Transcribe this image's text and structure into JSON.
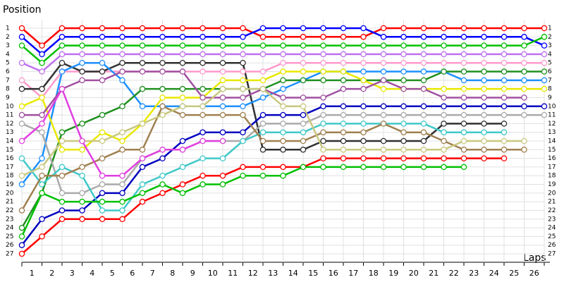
{
  "chart_data": {
    "type": "line",
    "y_label": "Position",
    "x_label": "Laps",
    "x": [
      0,
      1,
      2,
      3,
      4,
      5,
      6,
      7,
      8,
      9,
      10,
      11,
      12,
      13,
      14,
      15,
      16,
      17,
      18,
      19,
      20,
      21,
      22,
      23,
      24,
      25,
      26
    ],
    "xlim": [
      0,
      26
    ],
    "xticks": [
      1,
      2,
      3,
      4,
      5,
      6,
      7,
      8,
      9,
      10,
      11,
      12,
      13,
      14,
      15,
      16,
      17,
      18,
      19,
      20,
      21,
      22,
      23,
      24,
      25,
      26
    ],
    "ylim": [
      27,
      1
    ],
    "yticks": [
      1,
      2,
      3,
      4,
      5,
      6,
      7,
      8,
      9,
      10,
      11,
      12,
      13,
      14,
      15,
      16,
      17,
      18,
      19,
      20,
      21,
      22,
      23,
      24,
      25,
      26,
      27
    ],
    "grid": true,
    "series": [
      {
        "color": "#ff0000",
        "values": [
          1,
          3,
          1,
          1,
          1,
          1,
          1,
          1,
          1,
          1,
          1,
          1,
          2,
          2,
          2,
          2,
          2,
          2,
          1,
          1,
          1,
          1,
          1,
          1,
          1,
          1,
          1
        ]
      },
      {
        "color": "#0000ff",
        "values": [
          2,
          4,
          2,
          2,
          2,
          2,
          2,
          2,
          2,
          2,
          2,
          2,
          1,
          1,
          1,
          1,
          1,
          1,
          2,
          2,
          2,
          2,
          2,
          2,
          2,
          2,
          3
        ]
      },
      {
        "color": "#00c000",
        "values": [
          3,
          5,
          3,
          3,
          3,
          3,
          3,
          3,
          3,
          3,
          3,
          3,
          3,
          3,
          3,
          3,
          3,
          3,
          3,
          3,
          3,
          3,
          3,
          3,
          3,
          3,
          2
        ]
      },
      {
        "color": "#c070f0",
        "values": [
          5,
          6,
          4,
          4,
          4,
          4,
          4,
          4,
          4,
          4,
          4,
          4,
          4,
          4,
          4,
          4,
          4,
          4,
          4,
          4,
          4,
          4,
          4,
          4,
          4,
          4,
          4
        ]
      },
      {
        "color": "#ff99cc",
        "values": [
          7,
          9,
          6,
          6,
          6,
          6,
          6,
          6,
          6,
          6,
          6,
          6,
          6,
          5,
          5,
          5,
          5,
          5,
          5,
          5,
          5,
          5,
          5,
          5,
          5,
          5,
          5
        ]
      },
      {
        "color": "#303030",
        "values": [
          8,
          8,
          5,
          6,
          6,
          5,
          5,
          5,
          5,
          5,
          5,
          5,
          15,
          15,
          15,
          14,
          14,
          14,
          14,
          14,
          14,
          12,
          12,
          12,
          12,
          null,
          null
        ]
      },
      {
        "color": "#1e90ff",
        "values": [
          19,
          16,
          6,
          5,
          5,
          7,
          10,
          10,
          10,
          10,
          10,
          10,
          9,
          8,
          7,
          6,
          6,
          6,
          6,
          6,
          6,
          6,
          7,
          7,
          7,
          7,
          7
        ]
      },
      {
        "color": "#209020",
        "values": [
          24,
          20,
          13,
          12,
          11,
          10,
          8,
          8,
          8,
          8,
          8,
          8,
          8,
          7,
          7,
          7,
          7,
          7,
          7,
          7,
          7,
          6,
          6,
          6,
          6,
          6,
          6
        ]
      },
      {
        "color": "#e8e800",
        "values": [
          10,
          9,
          15,
          15,
          13,
          14,
          12,
          9,
          9,
          9,
          7,
          7,
          7,
          6,
          6,
          6,
          6,
          7,
          8,
          8,
          8,
          8,
          8,
          8,
          8,
          8,
          8
        ]
      },
      {
        "color": "#a050a0",
        "values": [
          11,
          11,
          8,
          7,
          7,
          6,
          6,
          6,
          6,
          9,
          9,
          9,
          8,
          9,
          9,
          9,
          8,
          8,
          7,
          8,
          8,
          9,
          9,
          9,
          9,
          9,
          null
        ]
      },
      {
        "color": "#0000c0",
        "values": [
          26,
          23,
          22,
          22,
          20,
          20,
          17,
          16,
          14,
          13,
          13,
          13,
          11,
          11,
          11,
          10,
          10,
          10,
          10,
          10,
          10,
          10,
          10,
          10,
          10,
          10,
          10
        ]
      },
      {
        "color": "#aaaaaa",
        "values": [
          12,
          13,
          20,
          20,
          19,
          19,
          16,
          15,
          15,
          14,
          14,
          14,
          12,
          12,
          12,
          11,
          11,
          11,
          11,
          11,
          11,
          11,
          11,
          11,
          11,
          11,
          11
        ]
      },
      {
        "color": "#40c8c8",
        "values": [
          16,
          19,
          17,
          18,
          22,
          22,
          19,
          18,
          17,
          16,
          16,
          14,
          13,
          13,
          13,
          12,
          12,
          12,
          12,
          12,
          12,
          13,
          13,
          13,
          13,
          null,
          null
        ]
      },
      {
        "color": "#a08050",
        "values": [
          22,
          18,
          18,
          17,
          16,
          15,
          15,
          10,
          11,
          11,
          11,
          11,
          14,
          14,
          14,
          13,
          13,
          13,
          12,
          13,
          13,
          14,
          15,
          15,
          15,
          15,
          null
        ]
      },
      {
        "color": "#c8c880",
        "values": [
          18,
          17,
          14,
          14,
          14,
          13,
          12,
          11,
          10,
          10,
          8,
          8,
          8,
          10,
          10,
          15,
          15,
          15,
          15,
          15,
          15,
          15,
          14,
          14,
          14,
          14,
          null
        ]
      },
      {
        "color": "#ff0000",
        "values": [
          27,
          25,
          23,
          23,
          23,
          23,
          21,
          20,
          19,
          18,
          18,
          17,
          17,
          17,
          17,
          16,
          16,
          16,
          16,
          16,
          16,
          16,
          16,
          16,
          16,
          null,
          null
        ]
      },
      {
        "color": "#00c000",
        "values": [
          25,
          20,
          21,
          21,
          21,
          21,
          20,
          19,
          20,
          19,
          19,
          18,
          18,
          18,
          17,
          17,
          17,
          17,
          17,
          17,
          17,
          17,
          17,
          null,
          null,
          null,
          null
        ]
      },
      {
        "color": "#e040e0",
        "values": [
          14,
          12,
          8,
          14,
          18,
          18,
          16,
          15,
          15,
          14,
          14,
          null,
          null,
          null,
          null,
          null,
          null,
          null,
          null,
          null,
          null,
          null,
          null,
          null,
          null,
          null,
          null
        ]
      }
    ]
  }
}
